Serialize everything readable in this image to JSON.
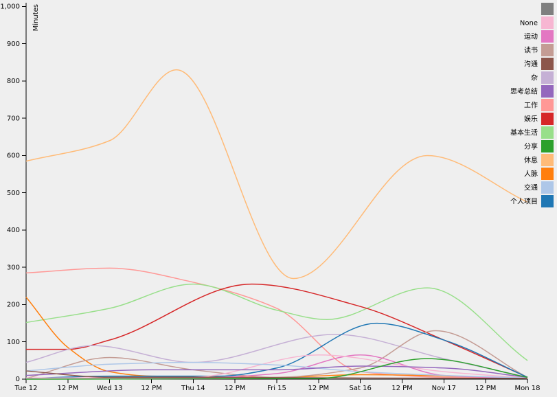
{
  "chart_data": {
    "type": "line",
    "ylabel": "Minutes",
    "ylim": [
      0,
      1010
    ],
    "yticks": [
      0,
      100,
      200,
      300,
      400,
      500,
      600,
      700,
      800,
      900,
      1000
    ],
    "ytick_labels": [
      "0",
      "100",
      "200",
      "300",
      "400",
      "500",
      "600",
      "700",
      "800",
      "900",
      "1,000"
    ],
    "x_domain": [
      0,
      6
    ],
    "xticks": [
      0,
      0.5,
      1,
      1.5,
      2,
      2.5,
      3,
      3.5,
      4,
      4.5,
      5,
      5.5,
      6
    ],
    "xtick_labels": [
      "Tue 12",
      "12 PM",
      "Wed 13",
      "12 PM",
      "Thu 14",
      "12 PM",
      "Fri 15",
      "12 PM",
      "Sat 16",
      "12 PM",
      "Nov 17",
      "12 PM",
      "Mon 18"
    ],
    "legend_position": "top-right",
    "legend": [
      {
        "name": "",
        "color": "#7f7f7f"
      },
      {
        "name": "None",
        "color": "#f7b6d2"
      },
      {
        "name": "运动",
        "color": "#e377c2"
      },
      {
        "name": "读书",
        "color": "#c49c94"
      },
      {
        "name": "沟通",
        "color": "#8c564b"
      },
      {
        "name": "杂",
        "color": "#c5b0d5"
      },
      {
        "name": "思考总结",
        "color": "#9467bd"
      },
      {
        "name": "工作",
        "color": "#ff9896"
      },
      {
        "name": "娱乐",
        "color": "#d62728"
      },
      {
        "name": "基本生活",
        "color": "#98df8a"
      },
      {
        "name": "分享",
        "color": "#2ca02c"
      },
      {
        "name": "休息",
        "color": "#ffbb78"
      },
      {
        "name": "人脉",
        "color": "#ff7f0e"
      },
      {
        "name": "交通",
        "color": "#aec7e8"
      },
      {
        "name": "个人项目",
        "color": "#1f77b4"
      }
    ],
    "series": [
      {
        "name": "休息",
        "color": "#ffbb78",
        "x": [
          0,
          1,
          1.8,
          3.2,
          4.8,
          6
        ],
        "y": [
          585,
          640,
          830,
          270,
          600,
          475
        ]
      },
      {
        "name": "工作",
        "color": "#ff9896",
        "x": [
          0,
          1,
          2,
          3,
          4,
          5,
          6
        ],
        "y": [
          285,
          298,
          260,
          190,
          20,
          5,
          3
        ]
      },
      {
        "name": "基本生活",
        "color": "#98df8a",
        "x": [
          0,
          1,
          2,
          3,
          3.6,
          4.8,
          6
        ],
        "y": [
          152,
          190,
          255,
          185,
          160,
          245,
          50
        ]
      },
      {
        "name": "娱乐",
        "color": "#d62728",
        "x": [
          0,
          0.5,
          1,
          2.7,
          4,
          5,
          6
        ],
        "y": [
          80,
          80,
          105,
          255,
          195,
          105,
          5
        ]
      },
      {
        "name": "人脉",
        "color": "#ff7f0e",
        "x": [
          0,
          0.5,
          1,
          1.5,
          3,
          4,
          6
        ],
        "y": [
          220,
          85,
          20,
          8,
          5,
          12,
          3
        ]
      },
      {
        "name": "杂",
        "color": "#c5b0d5",
        "x": [
          0,
          0.8,
          2,
          3.7,
          5,
          6
        ],
        "y": [
          45,
          90,
          45,
          120,
          55,
          5
        ]
      },
      {
        "name": "读书",
        "color": "#c49c94",
        "x": [
          0,
          1,
          2,
          3,
          4,
          4.9,
          6
        ],
        "y": [
          2,
          58,
          25,
          5,
          30,
          130,
          5
        ]
      },
      {
        "name": "个人项目",
        "color": "#1f77b4",
        "x": [
          0,
          1,
          2.3,
          3,
          4.2,
          5,
          6
        ],
        "y": [
          2,
          8,
          8,
          30,
          150,
          105,
          5
        ]
      },
      {
        "name": "运动",
        "color": "#e377c2",
        "x": [
          0,
          2,
          3,
          4,
          5,
          6
        ],
        "y": [
          3,
          3,
          15,
          65,
          10,
          2
        ]
      },
      {
        "name": "None",
        "color": "#f7b6d2",
        "x": [
          0,
          2,
          3.5,
          5,
          6
        ],
        "y": [
          3,
          5,
          65,
          20,
          3
        ]
      },
      {
        "name": "交通",
        "color": "#aec7e8",
        "x": [
          0,
          1,
          2,
          3,
          4,
          5,
          6
        ],
        "y": [
          22,
          40,
          45,
          38,
          20,
          10,
          3
        ]
      },
      {
        "name": "思考总结",
        "color": "#9467bd",
        "x": [
          0,
          1.5,
          3,
          4,
          5,
          6
        ],
        "y": [
          10,
          25,
          25,
          35,
          30,
          5
        ]
      },
      {
        "name": "沟通",
        "color": "#8c564b",
        "x": [
          0,
          1,
          2,
          4,
          6
        ],
        "y": [
          22,
          5,
          5,
          3,
          2
        ]
      },
      {
        "name": "分享",
        "color": "#2ca02c",
        "x": [
          0,
          3.5,
          4.8,
          6
        ],
        "y": [
          0,
          2,
          55,
          5
        ]
      }
    ]
  }
}
